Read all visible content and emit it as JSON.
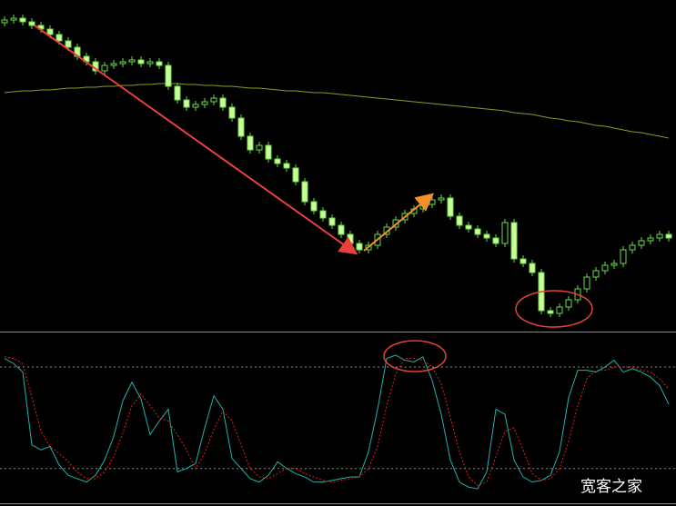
{
  "chart_data": [
    {
      "type": "candlestick",
      "ylim": [
        0,
        365
      ],
      "up_color": "#000000",
      "down_color": "#ccff99",
      "wick_color": "#66dd44",
      "open": [
        340,
        343,
        345,
        341,
        337,
        333,
        327,
        320,
        313,
        303,
        297,
        287,
        293,
        295,
        297,
        299,
        295,
        297,
        293,
        270,
        255,
        247,
        250,
        253,
        257,
        247,
        235,
        215,
        200,
        205,
        190,
        185,
        180,
        165,
        143,
        133,
        125,
        117,
        107,
        97,
        90,
        95,
        107,
        115,
        123,
        130,
        135,
        140,
        145,
        147,
        127,
        117,
        113,
        107,
        103,
        97,
        120,
        80,
        75,
        65,
        23,
        20,
        27,
        35,
        47,
        60,
        67,
        73,
        75,
        90,
        95,
        100,
        103,
        107
      ],
      "high": [
        347,
        349,
        349,
        345,
        341,
        337,
        331,
        324,
        317,
        307,
        301,
        297,
        299,
        301,
        303,
        303,
        301,
        301,
        297,
        274,
        259,
        254,
        257,
        261,
        261,
        251,
        239,
        219,
        209,
        209,
        194,
        189,
        184,
        169,
        147,
        137,
        129,
        121,
        111,
        101,
        99,
        111,
        119,
        127,
        134,
        139,
        144,
        149,
        151,
        151,
        131,
        121,
        117,
        111,
        107,
        124,
        124,
        84,
        79,
        69,
        27,
        31,
        39,
        51,
        64,
        71,
        77,
        79,
        94,
        99,
        104,
        107,
        111,
        111
      ],
      "low": [
        336,
        339,
        337,
        333,
        329,
        323,
        316,
        309,
        299,
        293,
        283,
        283,
        289,
        291,
        293,
        291,
        291,
        289,
        266,
        251,
        243,
        243,
        246,
        249,
        243,
        231,
        211,
        196,
        196,
        186,
        181,
        176,
        161,
        139,
        129,
        121,
        113,
        103,
        93,
        86,
        86,
        91,
        103,
        111,
        119,
        126,
        131,
        136,
        141,
        123,
        113,
        109,
        103,
        99,
        93,
        93,
        76,
        71,
        61,
        19,
        16,
        16,
        23,
        31,
        43,
        56,
        63,
        69,
        71,
        86,
        91,
        96,
        99,
        99
      ],
      "close": [
        343,
        345,
        341,
        337,
        333,
        327,
        320,
        313,
        303,
        297,
        287,
        293,
        295,
        297,
        299,
        295,
        297,
        293,
        270,
        255,
        247,
        250,
        253,
        257,
        247,
        235,
        215,
        200,
        205,
        190,
        185,
        180,
        165,
        143,
        133,
        125,
        117,
        107,
        97,
        90,
        95,
        107,
        115,
        123,
        130,
        135,
        140,
        145,
        147,
        127,
        117,
        113,
        107,
        103,
        97,
        120,
        80,
        75,
        65,
        23,
        20,
        27,
        35,
        47,
        60,
        67,
        73,
        75,
        90,
        95,
        100,
        103,
        107,
        103
      ],
      "series": [
        {
          "color": "#8c9a1e",
          "values": [
            263,
            264,
            265,
            265,
            266,
            266,
            267,
            268,
            268,
            269,
            269,
            270,
            270,
            271,
            271,
            272,
            272,
            273,
            273,
            273,
            272,
            272,
            271,
            271,
            270,
            270,
            269,
            268,
            268,
            267,
            266,
            265,
            265,
            264,
            263,
            263,
            262,
            261,
            260,
            259,
            258,
            257,
            256,
            255,
            254,
            253,
            252,
            251,
            250,
            249,
            248,
            247,
            246,
            245,
            244,
            243,
            241,
            240,
            239,
            237,
            235,
            234,
            232,
            231,
            229,
            227,
            226,
            224,
            222,
            220,
            219,
            217,
            215,
            213
          ]
        }
      ]
    },
    {
      "type": "line",
      "ylim": [
        0,
        100
      ],
      "levels": [
        80,
        20
      ],
      "series": [
        {
          "color": "#20b2aa",
          "values": [
            85,
            82,
            77,
            34,
            31,
            33,
            22,
            16,
            14,
            12,
            16,
            25,
            39,
            60,
            71,
            61,
            40,
            48,
            55,
            18,
            20,
            23,
            44,
            63,
            55,
            26,
            20,
            14,
            12,
            16,
            24,
            20,
            17,
            15,
            12,
            12,
            13,
            14,
            15,
            15,
            30,
            55,
            85,
            87,
            84,
            83,
            86,
            72,
            52,
            25,
            12,
            9,
            8,
            18,
            55,
            52,
            25,
            15,
            12,
            13,
            16,
            30,
            62,
            78,
            78,
            77,
            80,
            84,
            77,
            79,
            77,
            74,
            69,
            58
          ]
        },
        {
          "color": "#e0201a",
          "dashed": true,
          "values": [
            86,
            85,
            82,
            62,
            42,
            33,
            29,
            24,
            18,
            14,
            14,
            18,
            27,
            41,
            57,
            64,
            57,
            50,
            48,
            40,
            31,
            20,
            29,
            43,
            54,
            48,
            34,
            20,
            15,
            14,
            17,
            20,
            20,
            17,
            15,
            13,
            12,
            13,
            14,
            15,
            20,
            33,
            57,
            76,
            85,
            85,
            84,
            80,
            70,
            50,
            30,
            15,
            10,
            12,
            27,
            42,
            44,
            31,
            17,
            13,
            14,
            20,
            36,
            57,
            73,
            78,
            78,
            80,
            80,
            80,
            78,
            77,
            73,
            67
          ]
        }
      ]
    }
  ],
  "watermark": "宽客之家"
}
